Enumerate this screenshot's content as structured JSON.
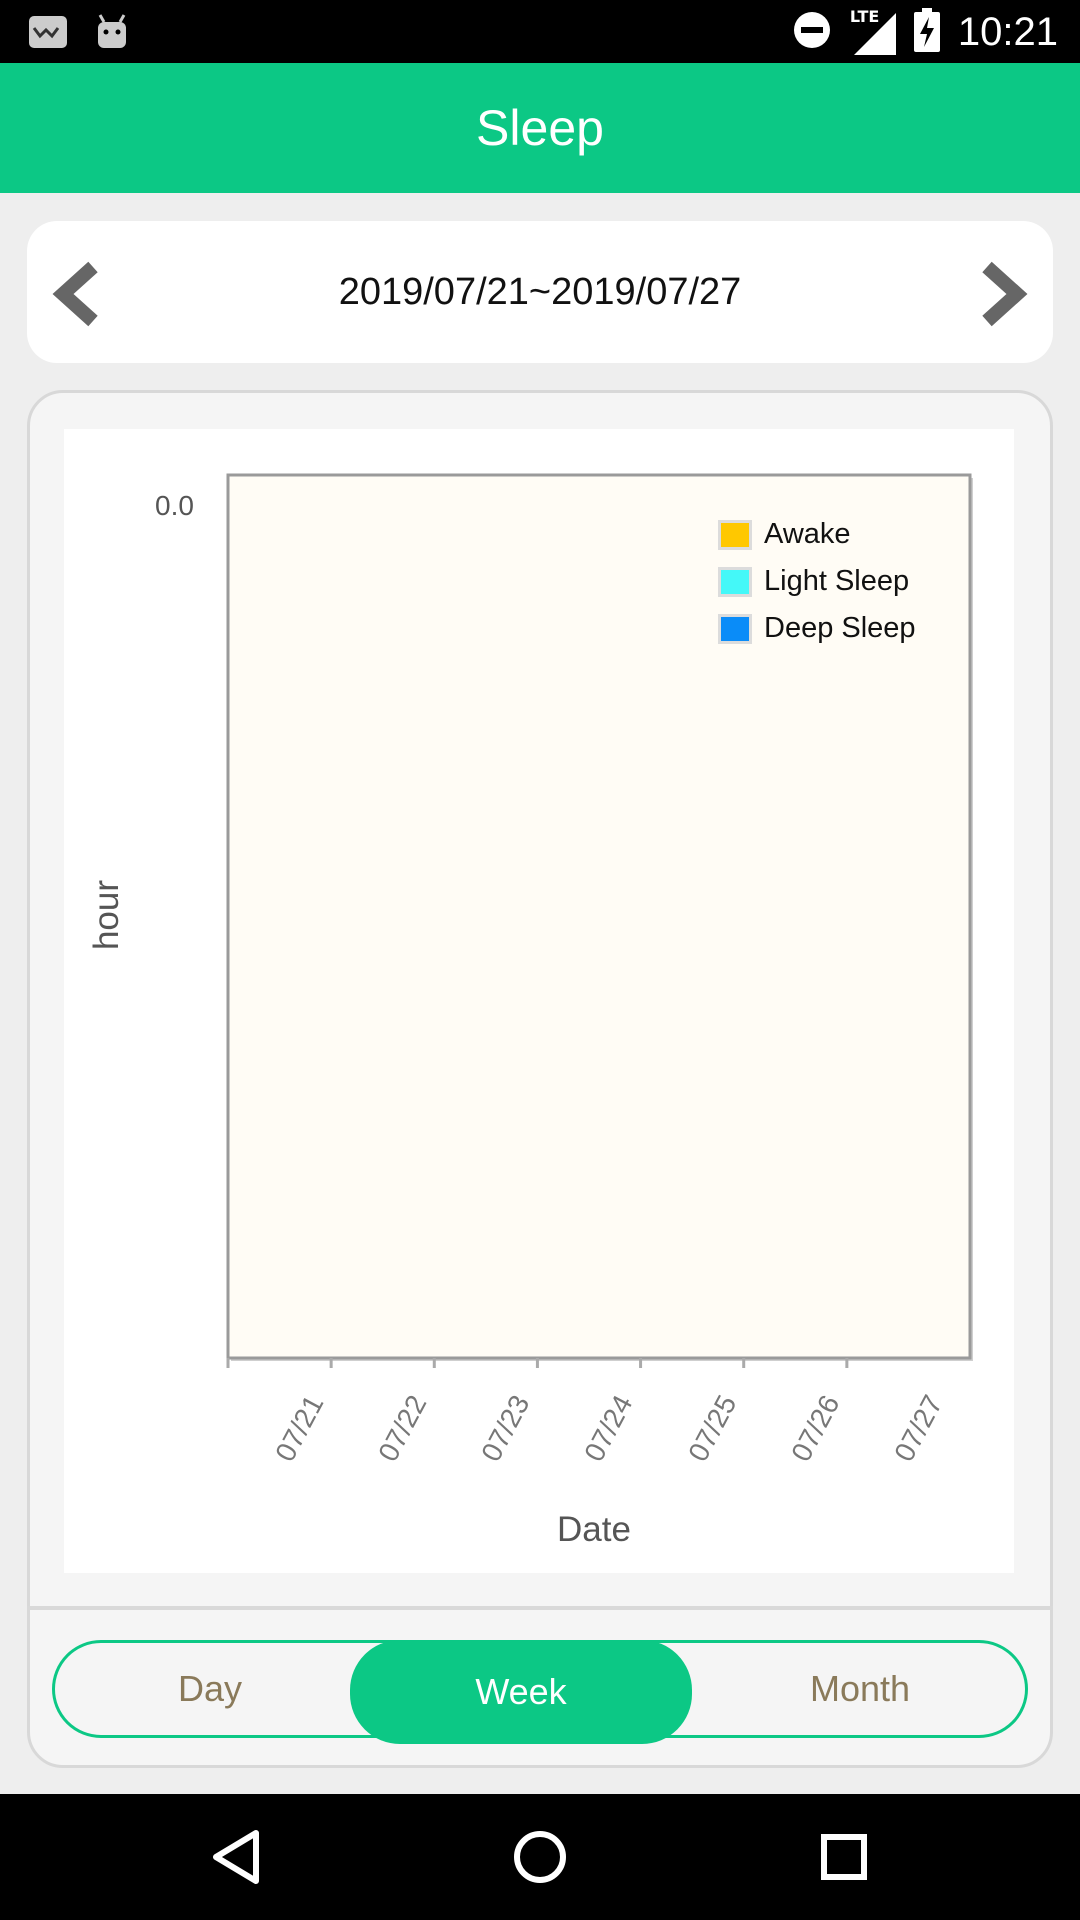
{
  "status_bar": {
    "time": "10:21",
    "network": "LTE",
    "icons": [
      "notification-icon",
      "android-icon",
      "do-not-disturb-icon",
      "signal-icon",
      "battery-charging-icon"
    ]
  },
  "app_bar": {
    "title": "Sleep"
  },
  "date_nav": {
    "range": "2019/07/21~2019/07/27",
    "prev_icon": "chevron-left-icon",
    "next_icon": "chevron-right-icon"
  },
  "chart_data": {
    "type": "bar",
    "stacked": true,
    "categories": [
      "07/21",
      "07/22",
      "07/23",
      "07/24",
      "07/25",
      "07/26",
      "07/27"
    ],
    "series": [
      {
        "name": "Awake",
        "color": "#ffc800",
        "values": [
          0,
          0,
          0,
          0,
          0,
          0,
          0
        ]
      },
      {
        "name": "Light Sleep",
        "color": "#44f8f8",
        "values": [
          0,
          0,
          0,
          0,
          0,
          0,
          0
        ]
      },
      {
        "name": "Deep Sleep",
        "color": "#0a8cf8",
        "values": [
          0,
          0,
          0,
          0,
          0,
          0,
          0
        ]
      }
    ],
    "y_ticks": [
      "0.0"
    ],
    "xlabel": "Date",
    "ylabel": "hour",
    "legend_position": "top-right",
    "plot_background": "#fffcf5"
  },
  "period_selector": {
    "options": [
      "Day",
      "Week",
      "Month"
    ],
    "selected": "Week"
  },
  "nav_bar": {
    "icons": [
      "back-icon",
      "home-icon",
      "recents-icon"
    ]
  },
  "colors": {
    "accent": "#0cc885"
  }
}
